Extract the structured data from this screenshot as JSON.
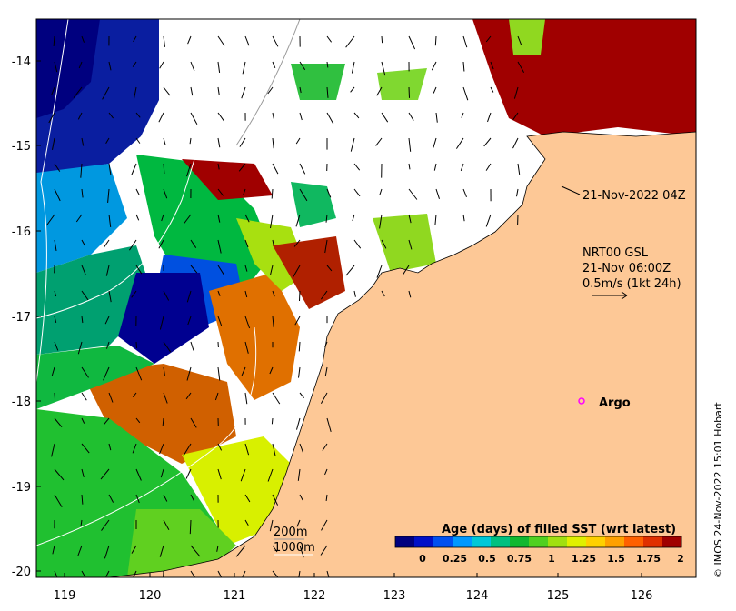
{
  "map": {
    "x_ticks": [
      "119",
      "120",
      "121",
      "122",
      "123",
      "124",
      "125",
      "126"
    ],
    "y_ticks": [
      "-14",
      "-15",
      "-16",
      "-17",
      "-18",
      "-19",
      "-20"
    ],
    "time_label": "21-Nov-2022 04Z",
    "current_info": {
      "line1": "NRT00 GSL",
      "line2": "21-Nov 06:00Z",
      "line3": "0.5m/s (1kt 24h)"
    },
    "argo_label": "Argo",
    "isobaths": [
      "200m",
      "1000m"
    ],
    "colorbar": {
      "title": "Age (days) of filled SST (wrt latest)",
      "tick_labels": [
        "0",
        "0.25",
        "0.5",
        "0.75",
        "1",
        "1.25",
        "1.5",
        "1.75",
        "2"
      ],
      "colors": [
        "#00007f",
        "#0010c8",
        "#0050f0",
        "#0098ff",
        "#00c8d8",
        "#00c080",
        "#10b830",
        "#50d020",
        "#a0e010",
        "#e0f000",
        "#ffd000",
        "#ffa000",
        "#ff6000",
        "#e03000",
        "#a00000"
      ]
    },
    "land_color": "#fdc896",
    "no_data_color": "#ffffff",
    "credit": "© IMOS 24-Nov-2022 15:01 Hobart"
  }
}
